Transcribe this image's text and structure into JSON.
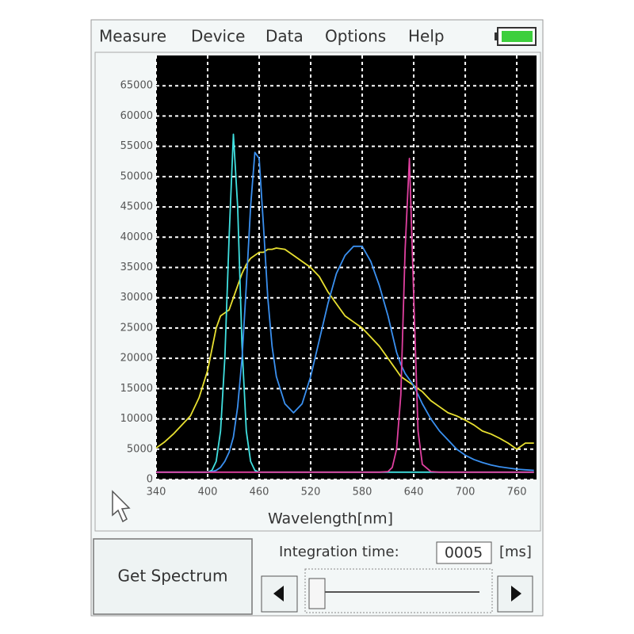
{
  "menu": [
    "Measure",
    "Device",
    "Data",
    "Options",
    "Help"
  ],
  "chart_data": {
    "type": "line",
    "x_label": "Wavelength[nm]",
    "x": [
      340,
      350,
      360,
      370,
      380,
      390,
      400,
      405,
      410,
      415,
      420,
      425,
      430,
      435,
      440,
      445,
      450,
      455,
      460,
      465,
      470,
      475,
      480,
      490,
      500,
      510,
      520,
      530,
      540,
      550,
      560,
      570,
      580,
      590,
      600,
      610,
      615,
      620,
      625,
      630,
      635,
      640,
      645,
      650,
      660,
      670,
      680,
      690,
      700,
      710,
      720,
      730,
      740,
      750,
      760,
      770,
      780
    ],
    "series": [
      {
        "color": "#e8e030",
        "values": [
          5200,
          6200,
          7500,
          9000,
          10500,
          13500,
          18000,
          21500,
          25000,
          27000,
          27500,
          28000,
          30000,
          32000,
          34000,
          35500,
          36500,
          37000,
          37500,
          37500,
          38000,
          38000,
          38200,
          38000,
          37000,
          36000,
          35000,
          33500,
          31000,
          29000,
          27000,
          26000,
          25000,
          23500,
          22000,
          20000,
          19000,
          18000,
          17000,
          16500,
          16000,
          15500,
          15000,
          14500,
          13000,
          12000,
          11000,
          10500,
          9800,
          9000,
          8000,
          7500,
          6800,
          6000,
          5000,
          6000,
          6000
        ]
      },
      {
        "color": "#40e0e0",
        "values": [
          1200,
          1200,
          1200,
          1200,
          1200,
          1200,
          1200,
          1500,
          3000,
          8000,
          20000,
          40000,
          57000,
          45000,
          22000,
          8000,
          3000,
          1500,
          1200,
          1200,
          1200,
          1200,
          1200,
          1200,
          1200,
          1200,
          1200,
          1200,
          1200,
          1200,
          1200,
          1200,
          1200,
          1200,
          1200,
          1200,
          1200,
          1200,
          1200,
          1200,
          1200,
          1200,
          1200,
          1200,
          1200,
          1200,
          1200,
          1200,
          1200,
          1200,
          1200,
          1200,
          1200,
          1200,
          1200,
          1200,
          1200
        ]
      },
      {
        "color": "#3a90f0",
        "values": [
          1200,
          1200,
          1200,
          1200,
          1200,
          1200,
          1200,
          1300,
          1500,
          2000,
          3000,
          4500,
          7000,
          12000,
          20000,
          32000,
          45000,
          54000,
          53000,
          42000,
          30000,
          22000,
          17000,
          12500,
          11000,
          12500,
          17000,
          23000,
          29000,
          34000,
          37000,
          38500,
          38500,
          36000,
          32000,
          27000,
          24000,
          21000,
          19000,
          17500,
          16500,
          15500,
          14000,
          12500,
          10000,
          8000,
          6500,
          5000,
          4000,
          3300,
          2800,
          2400,
          2100,
          1900,
          1700,
          1600,
          1500
        ]
      },
      {
        "color": "#e040a0",
        "values": [
          1200,
          1200,
          1200,
          1200,
          1200,
          1200,
          1200,
          1200,
          1200,
          1200,
          1200,
          1200,
          1200,
          1200,
          1200,
          1200,
          1200,
          1200,
          1200,
          1200,
          1200,
          1200,
          1200,
          1200,
          1200,
          1200,
          1200,
          1200,
          1200,
          1200,
          1200,
          1200,
          1200,
          1200,
          1200,
          1300,
          2000,
          5000,
          14000,
          38000,
          53000,
          30000,
          8000,
          2500,
          1300,
          1200,
          1200,
          1200,
          1200,
          1200,
          1200,
          1200,
          1200,
          1200,
          1200,
          1200,
          1200
        ]
      }
    ],
    "xlim": [
      340,
      783
    ],
    "ylim": [
      0,
      70000
    ],
    "xticks": [
      340,
      400,
      460,
      520,
      580,
      640,
      700,
      760
    ],
    "yticks": [
      0,
      5000,
      10000,
      15000,
      20000,
      25000,
      30000,
      35000,
      40000,
      45000,
      50000,
      55000,
      60000,
      65000
    ],
    "grid": true
  },
  "controls": {
    "button": "Get Spectrum",
    "integration_label": "Integration time:",
    "integration_value": "0005",
    "integration_unit": "[ms]"
  }
}
